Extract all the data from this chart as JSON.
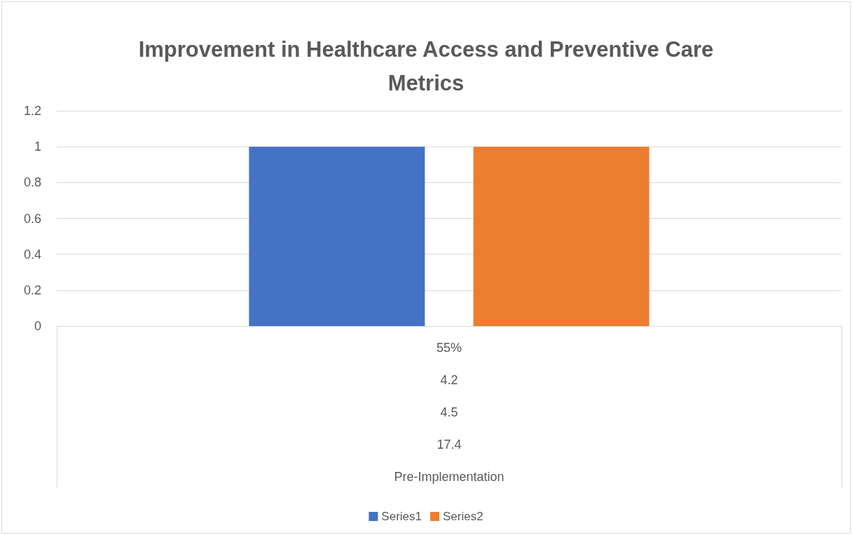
{
  "chart_data": {
    "type": "bar",
    "title": "Improvement in Healthcare Access and Preventive Care\nMetrics",
    "categories": [
      "55%\n4.2\n4.5\n17.4\nPre-Implementation"
    ],
    "series": [
      {
        "name": "Series1",
        "color": "#4472c4",
        "values": [
          1
        ]
      },
      {
        "name": "Series2",
        "color": "#ed7d31",
        "values": [
          1
        ]
      }
    ],
    "ylim": [
      0,
      1.2
    ],
    "yticks": [
      0,
      0.2,
      0.4,
      0.6,
      0.8,
      1,
      1.2
    ],
    "grid": "y",
    "legend": "bottom"
  }
}
